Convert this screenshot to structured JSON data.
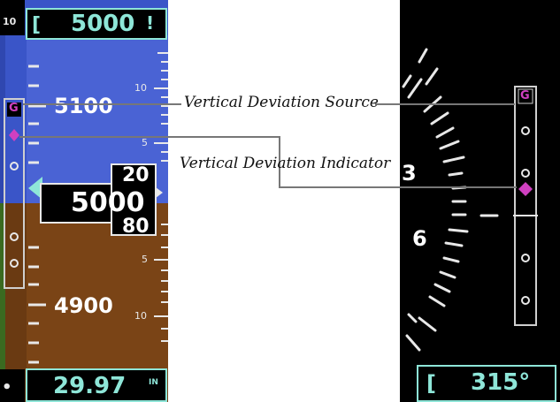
{
  "left_panel": {
    "selected_altitude": "5000",
    "selected_altitude_suffix": "!",
    "altitude_labels": [
      "5100",
      "4900"
    ],
    "vdi_scale_labels": [
      "10",
      "5",
      "5",
      "10"
    ],
    "current_altitude": "5000",
    "rolling_upper": "20",
    "rolling_lower": "80",
    "vertical_source": "G",
    "baro_setting": "29.97",
    "baro_unit": "IN",
    "top_left_digit": "10"
  },
  "right_panel": {
    "vertical_source": "G",
    "vsi_labels": [
      "3",
      "6"
    ],
    "heading": "315°"
  },
  "callouts": {
    "source": "Vertical Deviation Source",
    "indicator": "Vertical Deviation Indicator"
  },
  "colors": {
    "sky": "#3a55c8",
    "ground": "#6a3a12",
    "magenta": "#d040c0",
    "cyan": "#8ee6d8"
  }
}
